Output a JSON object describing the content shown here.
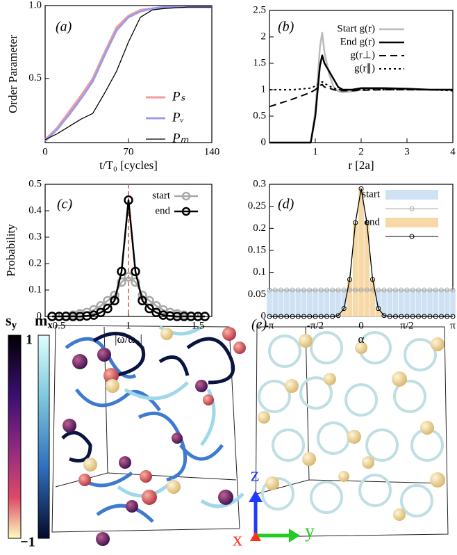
{
  "chart_data": [
    {
      "type": "line",
      "label": "(a)",
      "xlabel": "t/T₀ [cycles]",
      "ylabel": "Order Parameter",
      "xlim": [
        0,
        140
      ],
      "xticks": [
        0,
        70,
        140
      ],
      "ylim": [
        0.06,
        1
      ],
      "yticks": [
        0.5,
        {
          "value": 1,
          "label": "1.0"
        }
      ],
      "x": [
        0,
        10,
        20,
        30,
        40,
        50,
        60,
        70,
        80,
        90,
        100,
        120,
        140
      ],
      "series": [
        {
          "name": "Pₛ",
          "color": "#f29b9b",
          "width": 3,
          "values": [
            0.08,
            0.16,
            0.27,
            0.38,
            0.5,
            0.68,
            0.85,
            0.93,
            0.97,
            0.98,
            0.99,
            0.99,
            0.99
          ]
        },
        {
          "name": "Pᵥ",
          "color": "#9c9ce8",
          "width": 3,
          "values": [
            0.07,
            0.15,
            0.25,
            0.36,
            0.48,
            0.66,
            0.83,
            0.92,
            0.96,
            0.98,
            0.99,
            0.99,
            0.99
          ]
        },
        {
          "name": "Pₘ",
          "color": "#000000",
          "width": 1.3,
          "values": [
            0.08,
            0.12,
            0.17,
            0.22,
            0.26,
            0.4,
            0.55,
            0.75,
            0.92,
            0.97,
            0.98,
            0.99,
            0.99
          ]
        }
      ]
    },
    {
      "type": "line",
      "label": "(b)",
      "xlabel": "r [2a]",
      "xlim": [
        0,
        4
      ],
      "xticks": [
        1,
        2,
        3,
        4
      ],
      "ylim": [
        0,
        2.5
      ],
      "yticks": [
        0,
        0.5,
        1,
        1.5,
        2,
        2.5
      ],
      "x": [
        0,
        0.5,
        0.9,
        1.0,
        1.1,
        1.15,
        1.2,
        1.3,
        1.4,
        1.5,
        1.6,
        1.8,
        2.0,
        2.5,
        3,
        3.5,
        4
      ],
      "series": [
        {
          "name": "Start g(r)",
          "color": "#bbbbbb",
          "width": 2.5,
          "dash": "solid",
          "values": [
            0,
            0,
            0,
            0.6,
            1.8,
            2.08,
            1.7,
            1.3,
            1.05,
            0.97,
            0.95,
            0.97,
            1.0,
            1.02,
            1.0,
            1.0,
            1.0
          ]
        },
        {
          "name": "End g(r)",
          "color": "#000000",
          "width": 2.5,
          "dash": "solid",
          "values": [
            0,
            0,
            0,
            0.5,
            1.45,
            1.65,
            1.5,
            1.35,
            1.2,
            1.05,
            1.0,
            1.0,
            1.03,
            1.03,
            1.02,
            1.0,
            1.0
          ]
        },
        {
          "name": "g(r⊥)",
          "color": "#000000",
          "width": 2,
          "dash": "dashed",
          "values": [
            0.68,
            0.82,
            0.95,
            1.0,
            1.08,
            1.1,
            1.05,
            1.03,
            1.0,
            0.98,
            0.98,
            0.98,
            0.99,
            1.0,
            1.0,
            1.0,
            1.0
          ]
        },
        {
          "name": "g(r∥)",
          "color": "#000000",
          "width": 2,
          "dash": "dotted",
          "values": [
            1.0,
            1.0,
            1.03,
            1.07,
            1.13,
            1.15,
            1.12,
            1.07,
            1.03,
            1.0,
            1.0,
            1.0,
            1.0,
            1.0,
            1.0,
            1.0,
            0.98
          ]
        }
      ]
    },
    {
      "type": "line",
      "label": "(c)",
      "xlabel": "|ω/ω₀|",
      "ylabel": "Probability",
      "xlim": [
        0.4,
        1.6
      ],
      "xticks": [
        0.5,
        1,
        1.5
      ],
      "ylim": [
        0,
        0.5
      ],
      "yticks": [
        0,
        0.1,
        0.2,
        0.3,
        0.4,
        0.5
      ],
      "vline": {
        "value": 1,
        "color": "#d9534f"
      },
      "x": [
        0.45,
        0.5,
        0.55,
        0.6,
        0.65,
        0.7,
        0.75,
        0.8,
        0.85,
        0.9,
        0.95,
        1,
        1.05,
        1.1,
        1.15,
        1.2,
        1.25,
        1.3,
        1.35,
        1.4,
        1.45,
        1.5,
        1.55
      ],
      "series": [
        {
          "name": "start",
          "color": "#a8a8a8",
          "width": 2.5,
          "marker": "circle",
          "values": [
            0,
            0,
            0.002,
            0.005,
            0.01,
            0.015,
            0.025,
            0.04,
            0.06,
            0.08,
            0.13,
            0.15,
            0.13,
            0.08,
            0.06,
            0.04,
            0.025,
            0.015,
            0.01,
            0.005,
            0.002,
            0,
            0
          ]
        },
        {
          "name": "end",
          "color": "#000000",
          "width": 2.5,
          "marker": "circle",
          "values": [
            0,
            0,
            0,
            0,
            0,
            0.002,
            0.005,
            0.015,
            0.03,
            0.06,
            0.17,
            0.44,
            0.17,
            0.06,
            0.03,
            0.015,
            0.005,
            0.002,
            0,
            0,
            0,
            0,
            0
          ]
        }
      ]
    },
    {
      "type": "bar_line",
      "label": "(d)",
      "xlabel": "α",
      "xlim": [
        -3.1416,
        3.1416
      ],
      "xticks": [
        {
          "value": -3.1416,
          "label": "-π"
        },
        {
          "value": -1.5708,
          "label": "-π/2"
        },
        0,
        {
          "value": 1.5708,
          "label": "π/2"
        },
        {
          "value": 3.1416,
          "label": "π"
        }
      ],
      "ylim": [
        0,
        0.3
      ],
      "yticks": [
        0,
        0.05,
        0.1,
        0.15,
        0.2,
        0.25,
        0.3
      ],
      "x": [
        -3.142,
        -2.945,
        -2.749,
        -2.553,
        -2.356,
        -2.16,
        -1.963,
        -1.767,
        -1.571,
        -1.374,
        -1.178,
        -0.982,
        -0.785,
        -0.589,
        -0.393,
        -0.196,
        0,
        0.196,
        0.393,
        0.589,
        0.785,
        0.982,
        1.178,
        1.374,
        1.571,
        1.767,
        1.963,
        2.16,
        2.356,
        2.553,
        2.749,
        2.945,
        3.142
      ],
      "series": [
        {
          "name": "start",
          "color": "#a8a8a8",
          "bar_color": "#cfe2f3",
          "values": [
            0.06,
            0.06,
            0.06,
            0.06,
            0.06,
            0.06,
            0.06,
            0.06,
            0.06,
            0.06,
            0.06,
            0.06,
            0.06,
            0.06,
            0.06,
            0.06,
            0.06,
            0.06,
            0.06,
            0.06,
            0.06,
            0.06,
            0.06,
            0.06,
            0.06,
            0.06,
            0.06,
            0.06,
            0.06,
            0.06,
            0.06,
            0.06,
            0.06
          ]
        },
        {
          "name": "end",
          "color": "#000000",
          "bar_color": "#f6d9a6",
          "values": [
            0,
            0,
            0,
            0,
            0,
            0,
            0,
            0,
            0,
            0,
            0,
            0,
            0.002,
            0.018,
            0.084,
            0.213,
            0.29,
            0.213,
            0.084,
            0.018,
            0.002,
            0,
            0,
            0,
            0,
            0,
            0,
            0,
            0,
            0,
            0,
            0,
            0
          ]
        }
      ]
    }
  ],
  "render": {
    "label": "(e)",
    "colorbar_s": {
      "symbol": "s",
      "sub": "y"
    },
    "colorbar_m": {
      "symbol": "m",
      "sub": "x"
    },
    "colorbar_ticks": [
      1,
      {
        "value": -1,
        "label": "−1"
      }
    ],
    "axes": [
      "z",
      "x",
      "y"
    ]
  }
}
